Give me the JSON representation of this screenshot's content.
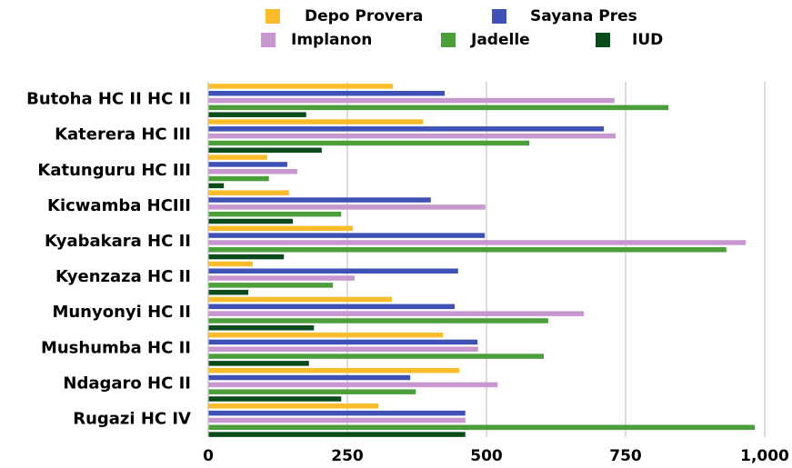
{
  "chart_data": {
    "type": "bar",
    "orientation": "horizontal",
    "categories": [
      "Butoha HC II HC II",
      "Katerera HC III",
      "Katunguru HC III",
      "Kicwamba HCIII",
      "Kyabakara HC II",
      "Kyenzaza HC II",
      "Munyonyi HC II",
      "Mushumba HC II",
      "Ndagaro HC II",
      "Rugazi HC IV"
    ],
    "series": [
      {
        "name": "Depo Provera",
        "color": "#fbbc2c",
        "values": [
          332,
          386,
          106,
          145,
          260,
          80,
          330,
          422,
          451,
          306
        ]
      },
      {
        "name": "Sayana Pres",
        "color": "#3f51b5",
        "values": [
          425,
          711,
          142,
          400,
          497,
          449,
          443,
          484,
          363,
          462
        ]
      },
      {
        "name": "Implanon",
        "color": "#c997cf",
        "values": [
          730,
          732,
          160,
          498,
          966,
          263,
          675,
          485,
          520,
          462
        ]
      },
      {
        "name": "Jadelle",
        "color": "#4c9e3b",
        "values": [
          827,
          577,
          109,
          239,
          931,
          224,
          611,
          603,
          373,
          982
        ]
      },
      {
        "name": "IUD",
        "color": "#0b4a1a",
        "values": [
          176,
          204,
          28,
          152,
          136,
          72,
          190,
          181,
          239,
          462
        ]
      }
    ],
    "xlim": [
      0,
      1000
    ],
    "xticks": [
      0,
      250,
      500,
      750,
      {
        "value": 1000,
        "label": "1,000"
      }
    ],
    "grid": true,
    "legend": "top"
  }
}
